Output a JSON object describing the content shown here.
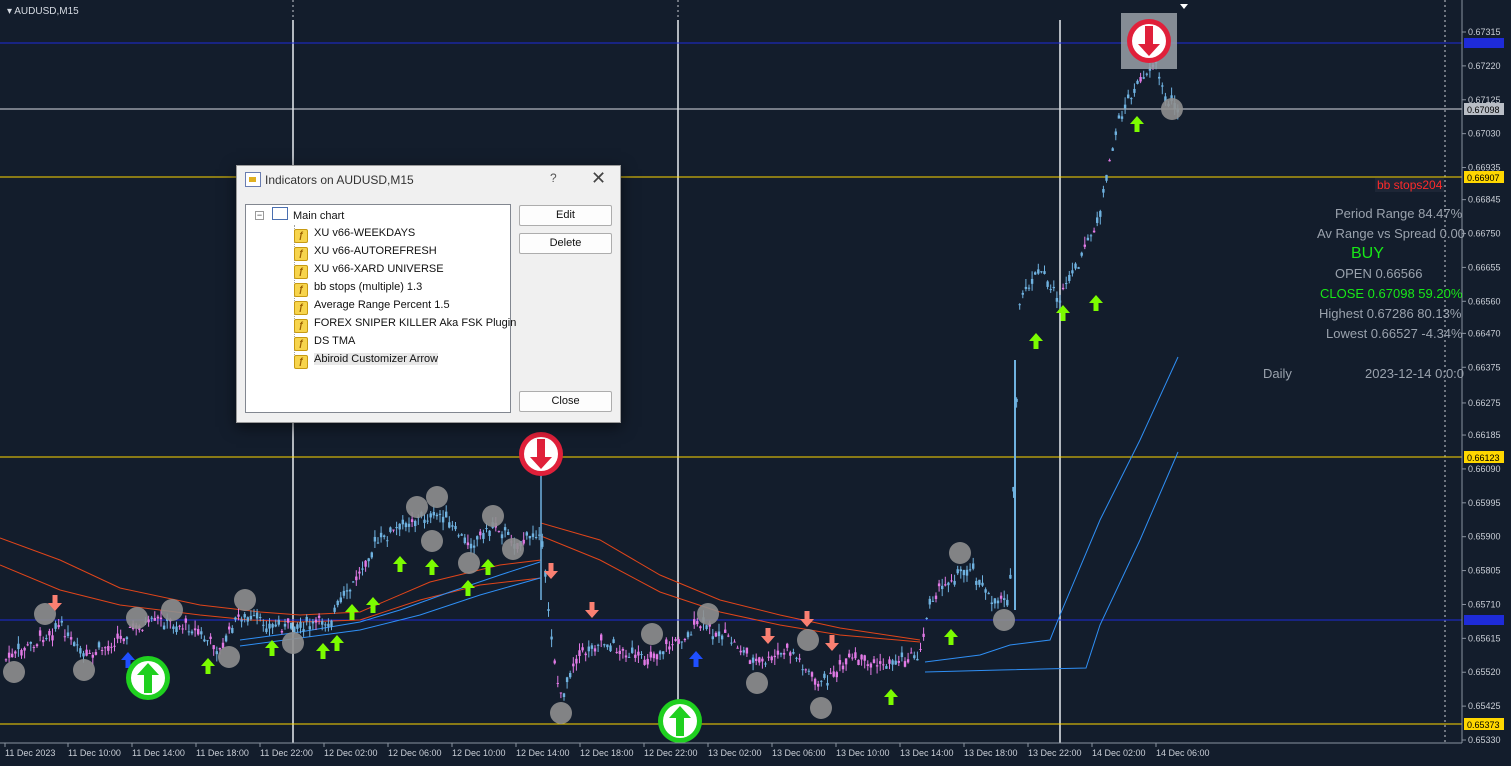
{
  "symbol": "AUDUSD,M15",
  "price_axis": {
    "labels": [
      "0.67315",
      "0.67220",
      "0.67125",
      "0.67030",
      "0.66935",
      "0.66845",
      "0.66750",
      "0.66655",
      "0.66560",
      "0.66470",
      "0.66375",
      "0.66275",
      "0.66185",
      "0.66090",
      "0.65995",
      "0.65900",
      "0.65805",
      "0.65710",
      "0.65615",
      "0.65520",
      "0.65425",
      "0.65330"
    ],
    "tags": [
      {
        "text": "0.67098",
        "color": "#b9bec6",
        "text_color": "#000000"
      },
      {
        "text": "0.66907",
        "color": "#ffd700",
        "text_color": "#000000"
      },
      {
        "text": "0.66123",
        "color": "#ffd700",
        "text_color": "#000000"
      },
      {
        "text": "0.65373",
        "color": "#ffd700",
        "text_color": "#000000"
      }
    ]
  },
  "time_axis": [
    "11 Dec 2023",
    "11 Dec 10:00",
    "11 Dec 14:00",
    "11 Dec 18:00",
    "11 Dec 22:00",
    "12 Dec 02:00",
    "12 Dec 06:00",
    "12 Dec 10:00",
    "12 Dec 14:00",
    "12 Dec 18:00",
    "12 Dec 22:00",
    "13 Dec 02:00",
    "13 Dec 06:00",
    "13 Dec 10:00",
    "13 Dec 14:00",
    "13 Dec 18:00",
    "13 Dec 22:00",
    "14 Dec 02:00",
    "14 Dec 06:00"
  ],
  "indicator_label": "bb stops204",
  "stats": {
    "period_range": "Period Range 84.47%",
    "av_range": "Av Range vs Spread 0.00",
    "signal": "BUY",
    "open": "OPEN 0.66566",
    "close": "CLOSE 0.67098 59.20%",
    "highest": "Highest 0.67286 80.13%",
    "lowest": "Lowest 0.66527 -4.34%",
    "timeframe": "Daily",
    "date": "2023-12-14 0:0:0"
  },
  "colors": {
    "bull_candle": "#6fb2e0",
    "bear_candle": "#e27ae6",
    "arrow_up": "#7cfc00",
    "arrow_down": "#fa8072",
    "signal_up": "#1f4fff",
    "marker": "#8f8f8f",
    "hline": "#ffd700",
    "blue_line": "#1e2bd8",
    "red_line": "#e0451a",
    "band_line": "#2f8ff5"
  },
  "dialog": {
    "title": "Indicators on AUDUSD,M15",
    "help": "?",
    "close_glyph": "✕",
    "root": "Main chart",
    "expander": "−",
    "items": [
      "XU v66-WEEKDAYS",
      "XU v66-AUTOREFRESH",
      "XU v66-XARD UNIVERSE",
      "bb stops (multiple) 1.3",
      "Average Range Percent 1.5",
      "FOREX SNIPER KILLER Aka FSK Plugin",
      "DS TMA",
      "Abiroid Customizer Arrow"
    ],
    "item_icon": "ƒ",
    "buttons": {
      "edit": "Edit",
      "delete": "Delete",
      "close": "Close"
    }
  }
}
